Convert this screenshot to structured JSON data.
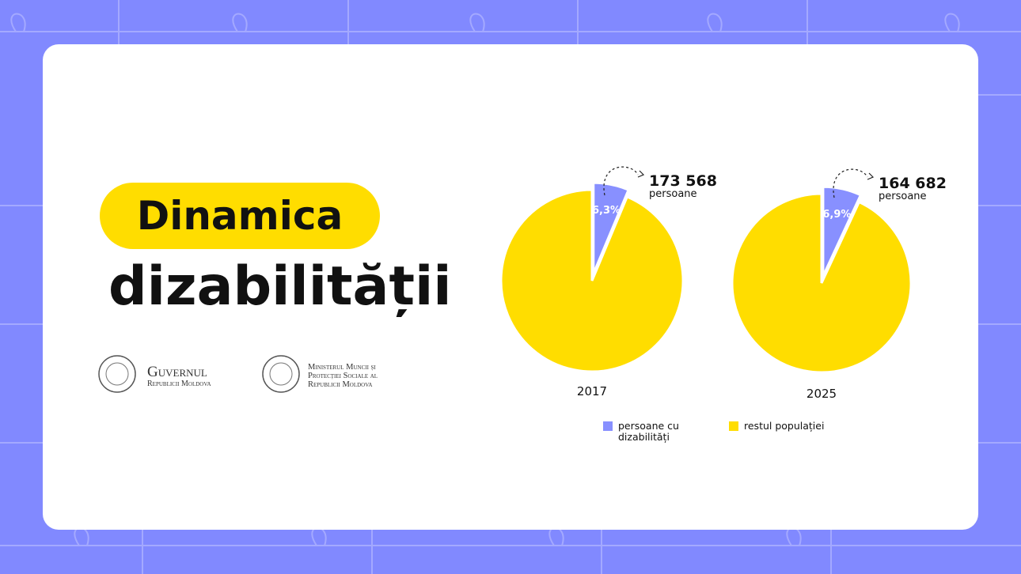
{
  "header": {
    "badge": "Dinamica",
    "title": "dizabilității"
  },
  "logos": [
    {
      "lines": [
        "Guvernul",
        "Republicii Moldova"
      ]
    },
    {
      "lines": [
        "Ministerul Muncii și",
        "Protecției Sociale al",
        "Republicii Moldova"
      ]
    }
  ],
  "chart_data": [
    {
      "type": "pie",
      "title": "2017",
      "categories": [
        "persoane cu dizabilități",
        "restul populației"
      ],
      "values": [
        6.3,
        93.7
      ],
      "value_labels": [
        "6,3%",
        null
      ],
      "colors": [
        "#8890ff",
        "#ffdd00"
      ],
      "annotations": [
        "173 568",
        "persoane"
      ]
    },
    {
      "type": "pie",
      "title": "2025",
      "categories": [
        "persoane cu dizabilități",
        "restul populației"
      ],
      "values": [
        6.9,
        93.1
      ],
      "value_labels": [
        "6,9%",
        null
      ],
      "colors": [
        "#8890ff",
        "#ffdd00"
      ],
      "annotations": [
        "164 682",
        "persoane"
      ]
    }
  ]
}
